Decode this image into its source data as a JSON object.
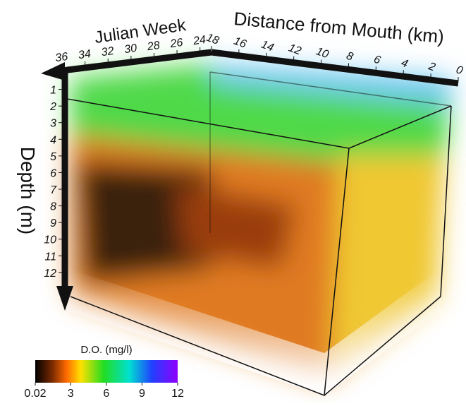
{
  "chart_data": {
    "type": "volume",
    "x_label": "Julian Week",
    "y_label": "Distance from Mouth (km)",
    "z_label": "Depth (m)",
    "xlim": [
      36,
      23
    ],
    "xticks": [
      36,
      34,
      32,
      30,
      28,
      26,
      24
    ],
    "ylim": [
      18,
      0
    ],
    "yticks": [
      18,
      16,
      14,
      12,
      10,
      8,
      6,
      4,
      2,
      0
    ],
    "zlim": [
      0,
      14
    ],
    "zticks": [
      1,
      2,
      3,
      4,
      5,
      6,
      7,
      8,
      9,
      10,
      11,
      12
    ],
    "colorbar": {
      "label": "D.O. (mg/l)",
      "lim": [
        0.02,
        12
      ],
      "ticks": [
        0.02,
        3,
        6,
        9,
        12
      ]
    }
  }
}
